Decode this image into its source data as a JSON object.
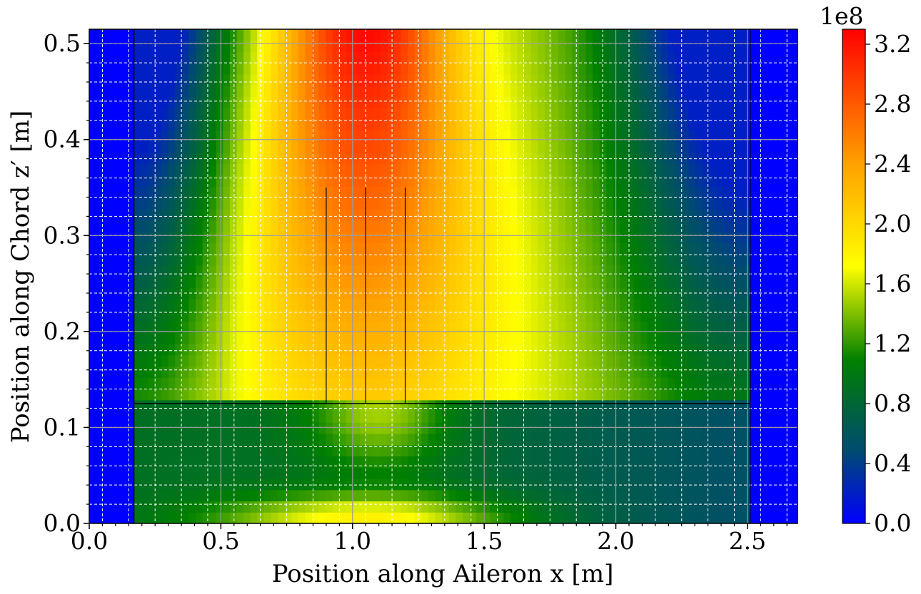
{
  "chart_data": {
    "type": "heatmap",
    "subtype": "filled-contour",
    "title": "",
    "xlabel": "Position along Aileron x [m]",
    "ylabel": "Position along Chord z′ [m]",
    "xlim": [
      0.0,
      2.69
    ],
    "ylim": [
      0.0,
      0.515
    ],
    "x_ticks": [
      0.0,
      0.5,
      1.0,
      1.5,
      2.0,
      2.5
    ],
    "x_tick_labels": [
      "0.0",
      "0.5",
      "1.0",
      "1.5",
      "2.0",
      "2.5"
    ],
    "y_ticks": [
      0.0,
      0.1,
      0.2,
      0.3,
      0.4,
      0.5
    ],
    "y_tick_labels": [
      "0.0",
      "0.1",
      "0.2",
      "0.3",
      "0.4",
      "0.5"
    ],
    "grid": {
      "major": true,
      "minor": true,
      "minor_style": "dashed white",
      "major_style": "solid gray"
    },
    "colorbar": {
      "offset_label": "1e8",
      "range": [
        0.0,
        3.3
      ],
      "ticks": [
        0.0,
        0.4,
        0.8,
        1.2,
        1.6,
        2.0,
        2.4,
        2.8,
        3.2
      ],
      "tick_labels": [
        "0.0",
        "0.4",
        "0.8",
        "1.2",
        "1.6",
        "2.0",
        "2.4",
        "2.8",
        "3.2"
      ],
      "colormap": [
        "#0000ff",
        "#004c6e",
        "#008000",
        "#ffff00",
        "#ffa500",
        "#ff0000"
      ]
    },
    "regions": {
      "background_x_extent": [
        0.17,
        2.51
      ],
      "spar_z": 0.125,
      "ribs_x": [
        0.9,
        1.05,
        1.2
      ]
    },
    "field_description": "Von Mises stress field peaking (~3.3e8) near x≈1.05, z′≈0.5; yellow-green values (~1.2–2.0e8) in upper section, lower section dominated by dark green/teal (~0.4–0.8e8) with a yellow band near z′≈0.01"
  }
}
